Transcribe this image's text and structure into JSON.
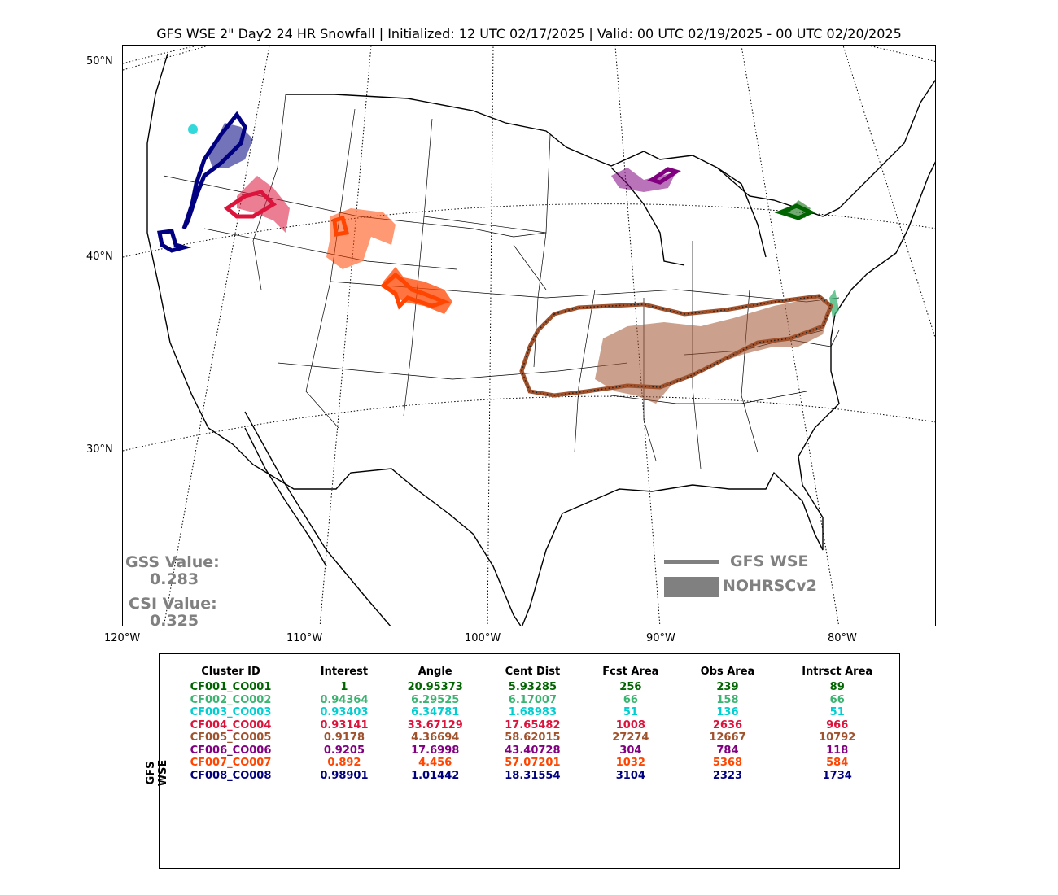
{
  "title": "GFS WSE 2\" Day2 24 HR Snowfall | Initialized: 12 UTC 02/17/2025 | Valid: 00 UTC 02/19/2025 - 00 UTC 02/20/2025",
  "lat_labels": [
    "50°N",
    "40°N",
    "30°N"
  ],
  "lon_labels": [
    "120°W",
    "110°W",
    "100°W",
    "90°W",
    "80°W"
  ],
  "gss": {
    "label": "GSS Value:",
    "value": "0.283"
  },
  "csi": {
    "label": "CSI Value:",
    "value": "0.325"
  },
  "legend": {
    "forecast": "GFS WSE",
    "observed": "NOHRSCv2",
    "color": "#808080"
  },
  "table": {
    "side_label": "GFS WSE",
    "headers": [
      "Cluster ID",
      "Interest",
      "Angle",
      "Cent Dist",
      "Fcst Area",
      "Obs Area",
      "Intrsct Area"
    ],
    "rows": [
      {
        "color": "#006400",
        "cells": [
          "CF001_CO001",
          "1",
          "20.95373",
          "5.93285",
          "256",
          "239",
          "89"
        ]
      },
      {
        "color": "#3CB371",
        "cells": [
          "CF002_CO002",
          "0.94364",
          "6.29525",
          "6.17007",
          "66",
          "158",
          "66"
        ]
      },
      {
        "color": "#00CED1",
        "cells": [
          "CF003_CO003",
          "0.93403",
          "6.34781",
          "1.68983",
          "51",
          "136",
          "51"
        ]
      },
      {
        "color": "#DC143C",
        "cells": [
          "CF004_CO004",
          "0.93141",
          "33.67129",
          "17.65482",
          "1008",
          "2636",
          "966"
        ]
      },
      {
        "color": "#A0522D",
        "cells": [
          "CF005_CO005",
          "0.9178",
          "4.36694",
          "58.62015",
          "27274",
          "12667",
          "10792"
        ]
      },
      {
        "color": "#800080",
        "cells": [
          "CF006_CO006",
          "0.9205",
          "17.6998",
          "43.40728",
          "304",
          "784",
          "118"
        ]
      },
      {
        "color": "#FF4500",
        "cells": [
          "CF007_CO007",
          "0.892",
          "4.456",
          "57.07201",
          "1032",
          "5368",
          "584"
        ]
      },
      {
        "color": "#000080",
        "cells": [
          "CF008_CO008",
          "0.98901",
          "1.01442",
          "18.31554",
          "3104",
          "2323",
          "1734"
        ]
      }
    ]
  }
}
